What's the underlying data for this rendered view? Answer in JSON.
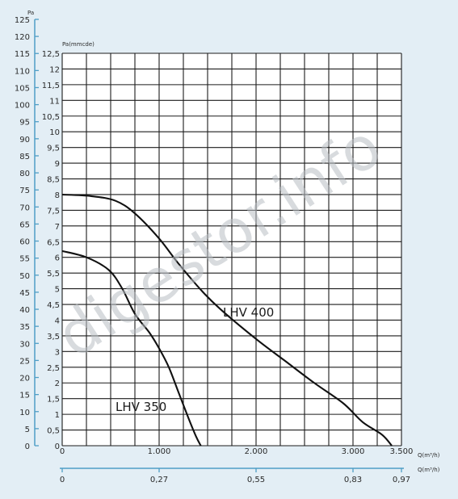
{
  "chart_data": {
    "type": "line",
    "watermark": "digestor.info",
    "x_axis": {
      "label": "Q(m³/h)",
      "range": [
        0,
        3500
      ],
      "ticks": [
        "0",
        "1.000",
        "2.000",
        "3.000",
        "3.500"
      ],
      "tick_values": [
        0,
        1000,
        2000,
        3000,
        3500
      ]
    },
    "x_axis_secondary": {
      "label": "Q(m³/h)",
      "ticks": [
        "0",
        "0,27",
        "0,55",
        "0,83",
        "0,97"
      ],
      "tick_values": [
        0,
        1000,
        2000,
        3000,
        3500
      ]
    },
    "y_axis_inner": {
      "label": "Pa(mmcde)",
      "range": [
        0,
        12.5
      ],
      "ticks": [
        "0",
        "0,5",
        "1",
        "1,5",
        "2",
        "2,5",
        "3",
        "3,5",
        "4",
        "4,5",
        "5",
        "5,5",
        "6",
        "6,5",
        "7",
        "7,5",
        "8",
        "8,5",
        "9",
        "9,5",
        "10",
        "10,5",
        "11",
        "11,5",
        "12",
        "12,5"
      ]
    },
    "y_axis_outer": {
      "label": "Pa",
      "range": [
        0,
        125
      ],
      "ticks": [
        "0",
        "5",
        "10",
        "15",
        "20",
        "25",
        "30",
        "35",
        "40",
        "45",
        "50",
        "55",
        "60",
        "65",
        "70",
        "75",
        "80",
        "85",
        "90",
        "95",
        "100",
        "105",
        "110",
        "115",
        "120",
        "125"
      ]
    },
    "grid": true,
    "series": [
      {
        "name": "LHV 400",
        "points": [
          [
            0,
            8
          ],
          [
            300,
            7.95
          ],
          [
            550,
            7.8
          ],
          [
            750,
            7.4
          ],
          [
            1000,
            6.6
          ],
          [
            1200,
            5.8
          ],
          [
            1450,
            4.9
          ],
          [
            1650,
            4.3
          ],
          [
            2000,
            3.4
          ],
          [
            2300,
            2.7
          ],
          [
            2600,
            2.0
          ],
          [
            2900,
            1.35
          ],
          [
            3100,
            0.75
          ],
          [
            3300,
            0.35
          ],
          [
            3400,
            0
          ]
        ]
      },
      {
        "name": "LHV 350",
        "points": [
          [
            0,
            6.2
          ],
          [
            250,
            6.0
          ],
          [
            480,
            5.6
          ],
          [
            620,
            5.0
          ],
          [
            750,
            4.2
          ],
          [
            900,
            3.6
          ],
          [
            1000,
            3.1
          ],
          [
            1100,
            2.5
          ],
          [
            1200,
            1.7
          ],
          [
            1300,
            0.9
          ],
          [
            1380,
            0.3
          ],
          [
            1430,
            0
          ]
        ]
      }
    ]
  }
}
